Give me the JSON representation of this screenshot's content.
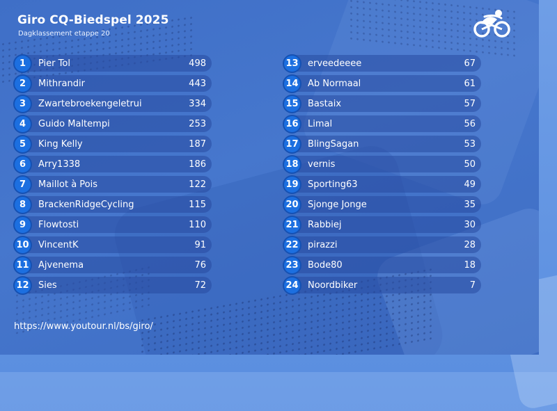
{
  "header": {
    "title": "Giro CQ-Biedspel 2025",
    "subtitle": "Dagklassement etappe 20",
    "logo_icon": "cyclist-logo-icon"
  },
  "colors": {
    "badge": "#1c6fe0",
    "row_bar": "#2f55a8",
    "background": "#4677cd"
  },
  "rankings_left": [
    {
      "rank": "1",
      "name": "Pier Tol",
      "score": "498"
    },
    {
      "rank": "2",
      "name": "Mithrandir",
      "score": "443"
    },
    {
      "rank": "3",
      "name": "Zwartebroekengeletrui",
      "score": "334"
    },
    {
      "rank": "4",
      "name": "Guido Maltempi",
      "score": "253"
    },
    {
      "rank": "5",
      "name": "King Kelly",
      "score": "187"
    },
    {
      "rank": "6",
      "name": "Arry1338",
      "score": "186"
    },
    {
      "rank": "7",
      "name": "Maillot à Pois",
      "score": "122"
    },
    {
      "rank": "8",
      "name": "BrackenRidgeCycling",
      "score": "115"
    },
    {
      "rank": "9",
      "name": "Flowtosti",
      "score": "110"
    },
    {
      "rank": "10",
      "name": "VincentK",
      "score": "91"
    },
    {
      "rank": "11",
      "name": "Ajvenema",
      "score": "76"
    },
    {
      "rank": "12",
      "name": "Sies",
      "score": "72"
    }
  ],
  "rankings_right": [
    {
      "rank": "13",
      "name": "erveedeeee",
      "score": "67"
    },
    {
      "rank": "14",
      "name": "Ab Normaal",
      "score": "61"
    },
    {
      "rank": "15",
      "name": "Bastaix",
      "score": "57"
    },
    {
      "rank": "16",
      "name": "Limal",
      "score": "56"
    },
    {
      "rank": "17",
      "name": "BlingSagan",
      "score": "53"
    },
    {
      "rank": "18",
      "name": "vernis",
      "score": "50"
    },
    {
      "rank": "19",
      "name": "Sporting63",
      "score": "49"
    },
    {
      "rank": "20",
      "name": "Sjonge Jonge",
      "score": "35"
    },
    {
      "rank": "21",
      "name": "Rabbiej",
      "score": "30"
    },
    {
      "rank": "22",
      "name": "pirazzi",
      "score": "28"
    },
    {
      "rank": "23",
      "name": "Bode80",
      "score": "18"
    },
    {
      "rank": "24",
      "name": "Noordbiker",
      "score": "7"
    }
  ],
  "footer": {
    "url": "https://www.youtour.nl/bs/giro/"
  }
}
